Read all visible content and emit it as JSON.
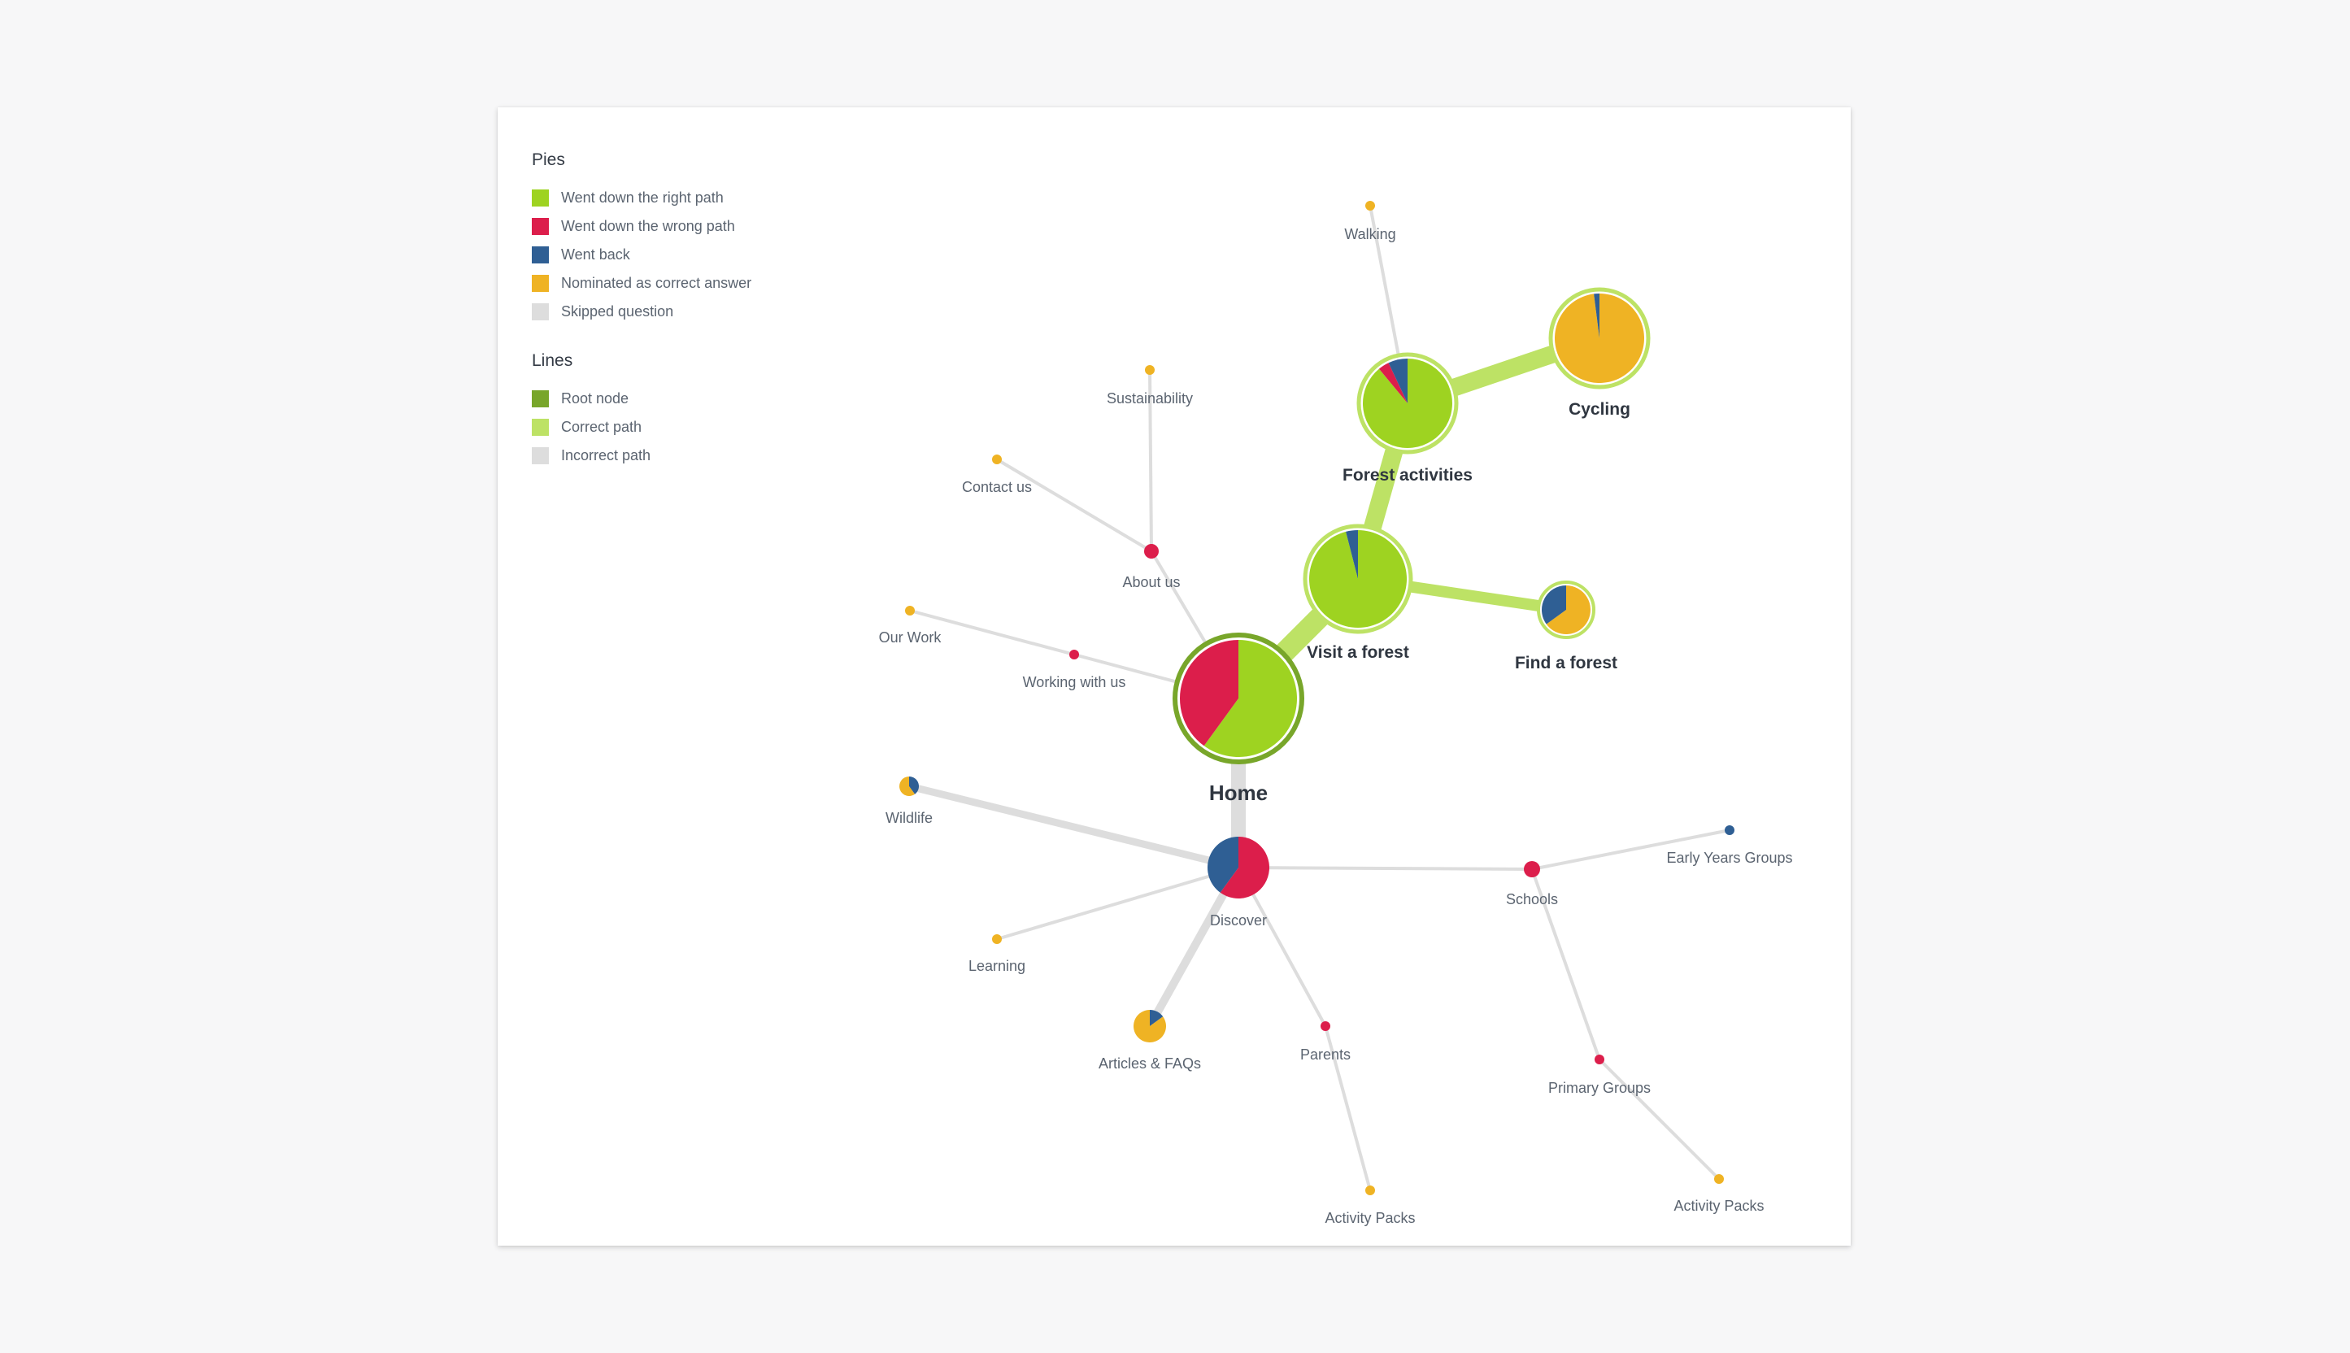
{
  "legend": {
    "pies_title": "Pies",
    "pies": [
      {
        "label": "Went down the right path",
        "color": "#9ed321"
      },
      {
        "label": "Went down the wrong path",
        "color": "#dc1e4b"
      },
      {
        "label": "Went back",
        "color": "#2f5f94"
      },
      {
        "label": "Nominated as correct answer",
        "color": "#efb324"
      },
      {
        "label": "Skipped question",
        "color": "#dddddd"
      }
    ],
    "lines_title": "Lines",
    "lines": [
      {
        "label": "Root node",
        "color": "#78a62a"
      },
      {
        "label": "Correct path",
        "color": "#bde265"
      },
      {
        "label": "Incorrect path",
        "color": "#dddddd"
      }
    ]
  },
  "colors": {
    "right": "#9ed321",
    "wrong": "#dc1e4b",
    "back": "#2f5f94",
    "nominated": "#efb324",
    "skipped": "#dddddd",
    "root_line": "#78a62a",
    "correct_line": "#bde265",
    "incorrect_line": "#dddddd"
  },
  "nodes": [
    {
      "id": "home",
      "label": "Home",
      "kind": "root",
      "pie": [
        [
          "right",
          0.6
        ],
        [
          "wrong",
          0.4
        ]
      ]
    },
    {
      "id": "visit",
      "label": "Visit a forest",
      "kind": "correct",
      "pie": [
        [
          "right",
          0.96
        ],
        [
          "back",
          0.04
        ]
      ]
    },
    {
      "id": "forest",
      "label": "Forest activities",
      "kind": "correct",
      "pie": [
        [
          "right",
          0.89
        ],
        [
          "wrong",
          0.04
        ],
        [
          "back",
          0.07
        ]
      ]
    },
    {
      "id": "cycling",
      "label": "Cycling",
      "kind": "correct",
      "pie": [
        [
          "nominated",
          0.98
        ],
        [
          "back",
          0.02
        ]
      ]
    },
    {
      "id": "find",
      "label": "Find a forest",
      "kind": "correct",
      "pie": [
        [
          "nominated",
          0.65
        ],
        [
          "back",
          0.35
        ]
      ]
    },
    {
      "id": "walking",
      "label": "Walking",
      "kind": "plain",
      "pie": [
        [
          "nominated",
          1
        ]
      ]
    },
    {
      "id": "about",
      "label": "About us",
      "kind": "plain",
      "pie": [
        [
          "wrong",
          1
        ]
      ]
    },
    {
      "id": "sustain",
      "label": "Sustainability",
      "kind": "plain",
      "pie": [
        [
          "nominated",
          1
        ]
      ]
    },
    {
      "id": "contact",
      "label": "Contact us",
      "kind": "plain",
      "pie": [
        [
          "nominated",
          1
        ]
      ]
    },
    {
      "id": "working",
      "label": "Working with us",
      "kind": "plain",
      "pie": [
        [
          "wrong",
          1
        ]
      ]
    },
    {
      "id": "ourwork",
      "label": "Our Work",
      "kind": "plain",
      "pie": [
        [
          "nominated",
          1
        ]
      ]
    },
    {
      "id": "discover",
      "label": "Discover",
      "kind": "plain",
      "pie": [
        [
          "wrong",
          0.6
        ],
        [
          "back",
          0.4
        ]
      ]
    },
    {
      "id": "wildlife",
      "label": "Wildlife",
      "kind": "plain",
      "pie": [
        [
          "back",
          0.4
        ],
        [
          "nominated",
          0.6
        ]
      ]
    },
    {
      "id": "learning",
      "label": "Learning",
      "kind": "plain",
      "pie": [
        [
          "nominated",
          1
        ]
      ]
    },
    {
      "id": "articles",
      "label": "Articles & FAQs",
      "kind": "plain",
      "pie": [
        [
          "back",
          0.15
        ],
        [
          "nominated",
          0.85
        ]
      ]
    },
    {
      "id": "parents",
      "label": "Parents",
      "kind": "plain",
      "pie": [
        [
          "wrong",
          1
        ]
      ]
    },
    {
      "id": "activity1",
      "label": "Activity Packs",
      "kind": "plain",
      "pie": [
        [
          "nominated",
          1
        ]
      ]
    },
    {
      "id": "schools",
      "label": "Schools",
      "kind": "plain",
      "pie": [
        [
          "wrong",
          1
        ]
      ]
    },
    {
      "id": "early",
      "label": "Early Years Groups",
      "kind": "plain",
      "pie": [
        [
          "back",
          1
        ]
      ]
    },
    {
      "id": "primary",
      "label": "Primary Groups",
      "kind": "plain",
      "pie": [
        [
          "wrong",
          1
        ]
      ]
    },
    {
      "id": "activity2",
      "label": "Activity Packs",
      "kind": "plain",
      "pie": [
        [
          "nominated",
          1
        ]
      ]
    }
  ],
  "edges": [
    {
      "from": "home",
      "to": "visit",
      "type": "correct"
    },
    {
      "from": "visit",
      "to": "forest",
      "type": "correct"
    },
    {
      "from": "forest",
      "to": "cycling",
      "type": "correct"
    },
    {
      "from": "visit",
      "to": "find",
      "type": "correct"
    },
    {
      "from": "forest",
      "to": "walking",
      "type": "incorrect"
    },
    {
      "from": "home",
      "to": "about",
      "type": "incorrect"
    },
    {
      "from": "about",
      "to": "sustain",
      "type": "incorrect"
    },
    {
      "from": "about",
      "to": "contact",
      "type": "incorrect"
    },
    {
      "from": "home",
      "to": "working",
      "type": "incorrect"
    },
    {
      "from": "working",
      "to": "ourwork",
      "type": "incorrect"
    },
    {
      "from": "home",
      "to": "discover",
      "type": "incorrect"
    },
    {
      "from": "discover",
      "to": "wildlife",
      "type": "incorrect"
    },
    {
      "from": "discover",
      "to": "learning",
      "type": "incorrect"
    },
    {
      "from": "discover",
      "to": "articles",
      "type": "incorrect"
    },
    {
      "from": "discover",
      "to": "parents",
      "type": "incorrect"
    },
    {
      "from": "parents",
      "to": "activity1",
      "type": "incorrect"
    },
    {
      "from": "discover",
      "to": "schools",
      "type": "incorrect"
    },
    {
      "from": "schools",
      "to": "early",
      "type": "incorrect"
    },
    {
      "from": "schools",
      "to": "primary",
      "type": "incorrect"
    },
    {
      "from": "primary",
      "to": "activity2",
      "type": "incorrect"
    }
  ]
}
